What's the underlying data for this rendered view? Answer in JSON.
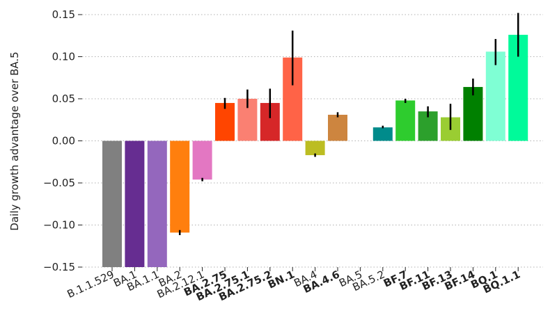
{
  "chart_data": {
    "type": "bar",
    "title": "",
    "xlabel": "",
    "ylabel": "Daily growth advantage over BA.5",
    "ylim": [
      -0.15,
      0.15
    ],
    "yticks": [
      -0.15,
      -0.1,
      -0.05,
      0.0,
      0.05,
      0.1,
      0.15
    ],
    "ytick_labels": [
      "−0.15",
      "−0.10",
      "−0.05",
      "0.00",
      "0.05",
      "0.10",
      "0.15"
    ],
    "grid": "horizontal dotted",
    "categories": [
      "B.1.1.529",
      "BA.1",
      "BA.1.1",
      "BA.2",
      "BA.2.12.1",
      "BA.2.75",
      "BA.2.75.1",
      "BA.2.75.2",
      "BN.1",
      "BA.4",
      "BA.4.6",
      "BA.5",
      "BA.5.2",
      "BF.7",
      "BF.11",
      "BF.13",
      "BF.14",
      "BQ.1",
      "BQ.1.1"
    ],
    "bold_categories": [
      "BA.2.75",
      "BA.2.75.1",
      "BA.2.75.2",
      "BN.1",
      "BA.4.6",
      "BF.7",
      "BF.11",
      "BF.13",
      "BF.14",
      "BQ.1",
      "BQ.1.1"
    ],
    "values": [
      -0.15,
      -0.15,
      -0.15,
      -0.109,
      -0.046,
      0.045,
      0.05,
      0.045,
      0.099,
      -0.017,
      0.031,
      0.0,
      0.016,
      0.048,
      0.035,
      0.028,
      0.064,
      0.106,
      0.126
    ],
    "error_low": [
      null,
      null,
      null,
      -0.112,
      -0.048,
      0.038,
      0.039,
      0.027,
      0.066,
      -0.019,
      0.028,
      null,
      0.015,
      0.045,
      0.028,
      0.013,
      0.054,
      0.09,
      0.1
    ],
    "error_high": [
      null,
      null,
      null,
      -0.106,
      -0.044,
      0.051,
      0.061,
      0.062,
      0.131,
      -0.015,
      0.034,
      null,
      0.018,
      0.05,
      0.041,
      0.044,
      0.074,
      0.121,
      0.152
    ],
    "colors": [
      "#808080",
      "#662d91",
      "#9467bd",
      "#ff7f0e",
      "#e377c2",
      "#ff4500",
      "#fa8072",
      "#d62728",
      "#ff6347",
      "#bcbd22",
      "#cd853f",
      "#ffffff",
      "#008b8b",
      "#2ecc2e",
      "#2ca02c",
      "#9acd32",
      "#008000",
      "#7fffd4",
      "#00fa9a"
    ]
  }
}
